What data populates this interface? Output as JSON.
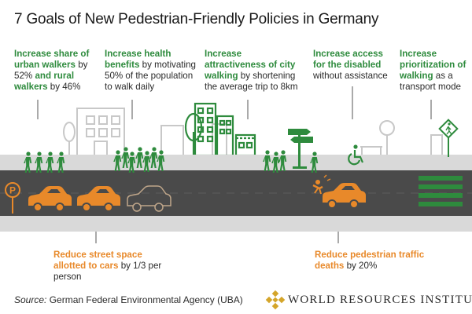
{
  "title": "7 Goals of New Pedestrian-Friendly Policies in Germany",
  "goals": [
    {
      "h1": "Increase share of urban walkers",
      "t1": " by 52% ",
      "h2": "and rural walkers",
      "t2": " by 46%"
    },
    {
      "h1": "Increase health benefits",
      "t1": " by motivating 50% of the population to walk daily"
    },
    {
      "h1": "Increase attractiveness of city walking",
      "t1": " by shortening the average trip to 8km"
    },
    {
      "h1": "Increase access for the disabled",
      "t1": " without assistance"
    },
    {
      "h1": "Increase prioritization of walking",
      "t1": " as a transport mode"
    }
  ],
  "bottom_goals": [
    {
      "h1": "Reduce street space allotted to cars",
      "t1": " by 1/3 per person"
    },
    {
      "h1": "Reduce pedestrian traffic deaths",
      "t1": " by 20%"
    }
  ],
  "source_label": "Source:",
  "source_text": " German Federal Environmental Agency (UBA)",
  "brand": "WORLD RESOURCES INSTITUTE",
  "colors": {
    "green": "#2e8b3d",
    "orange": "#e8892a",
    "road": "#4a4a4a",
    "sidewalk": "#d9d9d9"
  }
}
